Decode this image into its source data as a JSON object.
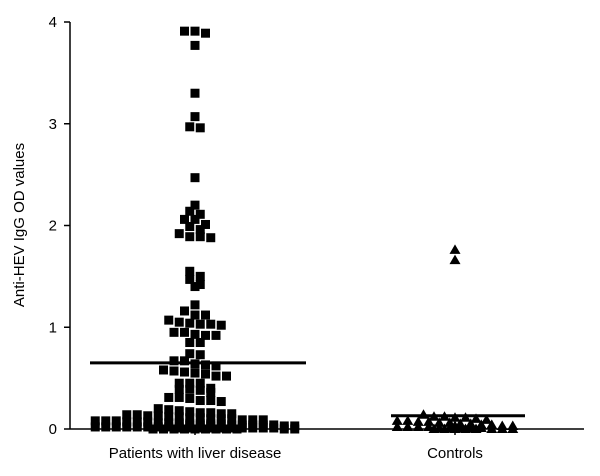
{
  "chart_data": {
    "type": "scatter",
    "title": "",
    "ylabel": "Anti-HEV IgG OD values",
    "xlabel": "",
    "ylim": [
      0,
      4
    ],
    "yticks": [
      0,
      1,
      2,
      3,
      4
    ],
    "grid": false,
    "legend": "none",
    "categories": [
      "Patients with liver disease",
      "Controls"
    ],
    "series": [
      {
        "category": "Patients with liver disease",
        "marker": "square",
        "color": "#000000",
        "mean": 0.65,
        "values": [
          3.91,
          3.91,
          3.89,
          3.77,
          3.3,
          3.07,
          2.97,
          2.96,
          2.47,
          2.2,
          2.14,
          2.11,
          2.06,
          2.06,
          2.01,
          1.99,
          1.96,
          1.92,
          1.89,
          1.89,
          1.88,
          1.55,
          1.5,
          1.47,
          1.42,
          1.4,
          1.22,
          1.16,
          1.12,
          1.12,
          1.07,
          1.05,
          1.04,
          1.03,
          1.03,
          1.02,
          0.95,
          0.95,
          0.93,
          0.92,
          0.92,
          0.85,
          0.85,
          0.74,
          0.73,
          0.67,
          0.67,
          0.64,
          0.63,
          0.62,
          0.58,
          0.57,
          0.56,
          0.55,
          0.54,
          0.52,
          0.52,
          0.45,
          0.45,
          0.45,
          0.4,
          0.39,
          0.39,
          0.38,
          0.36,
          0.31,
          0.31,
          0.3,
          0.28,
          0.28,
          0.27,
          0.2,
          0.19,
          0.18,
          0.17,
          0.16,
          0.16,
          0.15,
          0.15,
          0.14,
          0.14,
          0.13,
          0.13,
          0.12,
          0.12,
          0.11,
          0.11,
          0.1,
          0.1,
          0.1,
          0.09,
          0.09,
          0.09,
          0.08,
          0.08,
          0.08,
          0.07,
          0.07,
          0.07,
          0.06,
          0.06,
          0.06,
          0.05,
          0.05,
          0.05,
          0.05,
          0.04,
          0.04,
          0.04,
          0.04,
          0.04,
          0.03,
          0.03,
          0.03,
          0.03,
          0.03,
          0.03,
          0.02,
          0.02,
          0.02,
          0.02,
          0.02,
          0.02,
          0.02,
          0.02,
          0.01,
          0.01,
          0.01,
          0.01,
          0.01,
          0.01,
          0.01,
          0.01,
          0.01,
          0.01,
          0.0,
          0.0,
          0.0,
          0.0,
          0.0,
          0.0,
          0.0,
          0.0,
          0.0,
          0.0,
          0.0
        ]
      },
      {
        "category": "Controls",
        "marker": "triangle",
        "color": "#000000",
        "mean": 0.13,
        "values": [
          1.76,
          1.66,
          0.14,
          0.12,
          0.12,
          0.11,
          0.11,
          0.1,
          0.09,
          0.08,
          0.08,
          0.07,
          0.07,
          0.06,
          0.06,
          0.05,
          0.05,
          0.04,
          0.04,
          0.03,
          0.03,
          0.03,
          0.02,
          0.02,
          0.02,
          0.02,
          0.01,
          0.01,
          0.01,
          0.01,
          0.01,
          0.0,
          0.0,
          0.0,
          0.0,
          0.0,
          0.0,
          0.0,
          0.0
        ]
      }
    ]
  }
}
